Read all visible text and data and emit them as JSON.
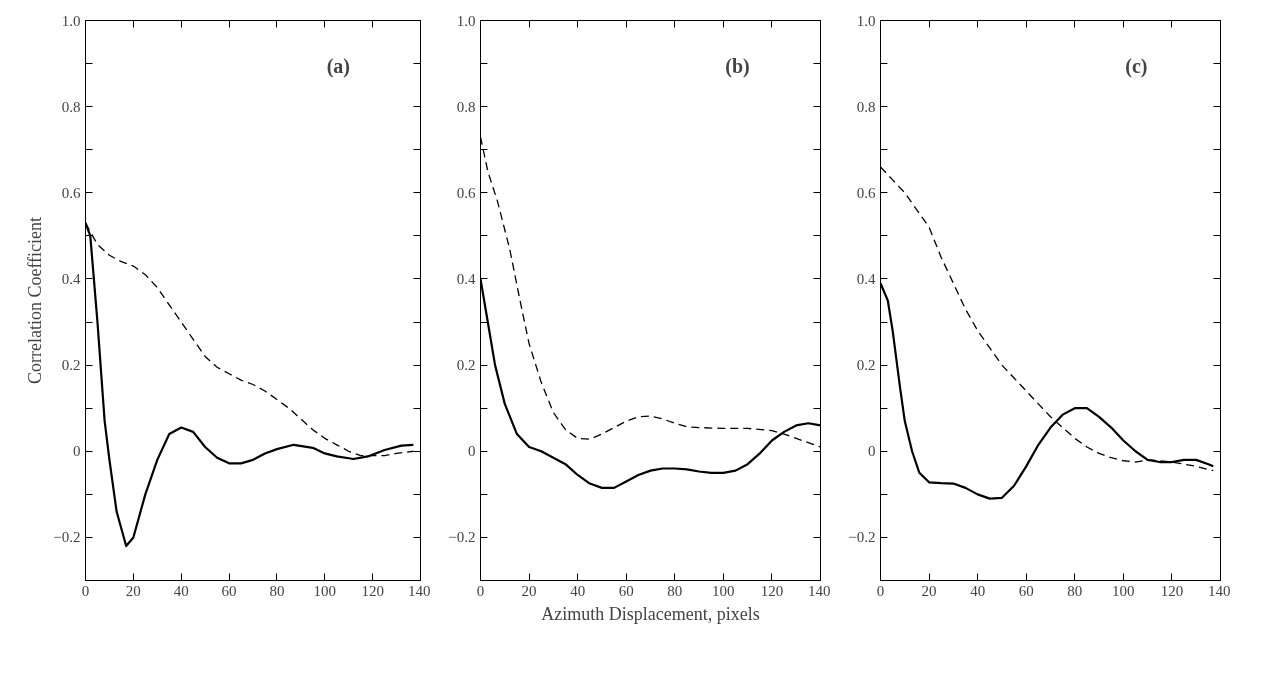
{
  "chart_data": [
    {
      "type": "line",
      "ylabel": "Correlation Coefficient",
      "annotations": [
        "(a)"
      ],
      "xlim": [
        0,
        140
      ],
      "ylim": [
        -0.3,
        1.0
      ],
      "xticks": [
        0,
        20,
        40,
        60,
        80,
        100,
        120,
        140
      ],
      "yticks": [
        {
          "value": -0.3,
          "label": null
        },
        -0.2,
        {
          "value": -0.1,
          "label": null
        },
        0,
        {
          "value": 0.1,
          "label": null
        },
        0.2,
        {
          "value": 0.3,
          "label": null
        },
        0.4,
        {
          "value": 0.5,
          "label": null
        },
        0.6,
        {
          "value": 0.7,
          "label": null
        },
        0.8,
        {
          "value": 0.9,
          "label": null
        },
        {
          "value": 1.0,
          "label": "1.0"
        }
      ],
      "grid": false,
      "series": [
        {
          "color": "#000000",
          "line_style": "solid",
          "x": [
            0,
            2,
            5,
            8,
            10,
            13,
            17,
            20,
            25,
            30,
            35,
            40,
            45,
            50,
            55,
            60,
            65,
            70,
            75,
            80,
            87,
            95,
            100,
            105,
            112,
            118,
            125,
            132,
            137
          ],
          "values": [
            0.53,
            0.5,
            0.3,
            0.07,
            -0.02,
            -0.14,
            -0.22,
            -0.2,
            -0.1,
            -0.02,
            0.04,
            0.055,
            0.045,
            0.01,
            -0.015,
            -0.028,
            -0.028,
            -0.02,
            -0.005,
            0.005,
            0.015,
            0.008,
            -0.005,
            -0.012,
            -0.018,
            -0.012,
            0.003,
            0.013,
            0.015
          ]
        },
        {
          "color": "#000000",
          "line_style": "dashed",
          "x": [
            0,
            5,
            10,
            15,
            20,
            25,
            30,
            35,
            40,
            45,
            50,
            55,
            60,
            65,
            70,
            75,
            80,
            85,
            90,
            95,
            100,
            105,
            110,
            115,
            120,
            125,
            130,
            137
          ],
          "values": [
            0.53,
            0.48,
            0.455,
            0.44,
            0.43,
            0.41,
            0.38,
            0.34,
            0.3,
            0.26,
            0.22,
            0.195,
            0.18,
            0.165,
            0.155,
            0.14,
            0.12,
            0.1,
            0.075,
            0.05,
            0.03,
            0.015,
            0.0,
            -0.01,
            -0.01,
            -0.01,
            -0.005,
            0.0
          ]
        }
      ]
    },
    {
      "type": "line",
      "xlabel": "Azimuth Displacement, pixels",
      "annotations": [
        "(b)"
      ],
      "xlim": [
        0,
        140
      ],
      "ylim": [
        -0.3,
        1.0
      ],
      "xticks": [
        0,
        20,
        40,
        60,
        80,
        100,
        120,
        140
      ],
      "yticks": [
        {
          "value": -0.3,
          "label": null
        },
        -0.2,
        {
          "value": -0.1,
          "label": null
        },
        0,
        {
          "value": 0.1,
          "label": null
        },
        0.2,
        {
          "value": 0.3,
          "label": null
        },
        0.4,
        {
          "value": 0.5,
          "label": null
        },
        0.6,
        {
          "value": 0.7,
          "label": null
        },
        0.8,
        {
          "value": 0.9,
          "label": null
        },
        {
          "value": 1.0,
          "label": "1.0"
        }
      ],
      "grid": false,
      "series": [
        {
          "color": "#000000",
          "line_style": "solid",
          "x": [
            0,
            3,
            6,
            10,
            15,
            20,
            25,
            30,
            35,
            40,
            45,
            50,
            55,
            60,
            65,
            70,
            75,
            80,
            85,
            90,
            95,
            100,
            105,
            110,
            115,
            120,
            125,
            130,
            135,
            140
          ],
          "values": [
            0.4,
            0.3,
            0.2,
            0.11,
            0.04,
            0.01,
            0.0,
            -0.015,
            -0.03,
            -0.055,
            -0.075,
            -0.085,
            -0.085,
            -0.07,
            -0.055,
            -0.045,
            -0.04,
            -0.04,
            -0.042,
            -0.047,
            -0.05,
            -0.05,
            -0.045,
            -0.03,
            -0.005,
            0.025,
            0.045,
            0.06,
            0.065,
            0.06
          ]
        },
        {
          "color": "#000000",
          "line_style": "dashed",
          "x": [
            0,
            3,
            7,
            12,
            17,
            20,
            25,
            30,
            35,
            40,
            45,
            50,
            55,
            60,
            65,
            70,
            75,
            80,
            85,
            90,
            100,
            110,
            120,
            125,
            130,
            135,
            140
          ],
          "values": [
            0.73,
            0.65,
            0.58,
            0.47,
            0.33,
            0.25,
            0.16,
            0.09,
            0.05,
            0.03,
            0.028,
            0.04,
            0.055,
            0.07,
            0.08,
            0.082,
            0.075,
            0.065,
            0.057,
            0.055,
            0.053,
            0.053,
            0.048,
            0.04,
            0.03,
            0.02,
            0.01
          ]
        }
      ]
    },
    {
      "type": "line",
      "annotations": [
        "(c)"
      ],
      "xlim": [
        0,
        140
      ],
      "ylim": [
        -0.3,
        1.0
      ],
      "xticks": [
        0,
        20,
        40,
        60,
        80,
        100,
        120,
        140
      ],
      "yticks": [
        {
          "value": -0.3,
          "label": null
        },
        -0.2,
        {
          "value": -0.1,
          "label": null
        },
        0,
        {
          "value": 0.1,
          "label": null
        },
        0.2,
        {
          "value": 0.3,
          "label": null
        },
        0.4,
        {
          "value": 0.5,
          "label": null
        },
        0.6,
        {
          "value": 0.7,
          "label": null
        },
        0.8,
        {
          "value": 0.9,
          "label": null
        },
        {
          "value": 1.0,
          "label": "1.0"
        }
      ],
      "grid": false,
      "series": [
        {
          "color": "#000000",
          "line_style": "solid",
          "x": [
            0,
            3,
            5,
            8,
            10,
            13,
            16,
            20,
            25,
            30,
            35,
            40,
            45,
            50,
            55,
            60,
            65,
            70,
            75,
            80,
            85,
            90,
            95,
            100,
            105,
            110,
            115,
            120,
            125,
            130,
            135,
            137
          ],
          "values": [
            0.39,
            0.35,
            0.28,
            0.15,
            0.07,
            0.0,
            -0.05,
            -0.072,
            -0.074,
            -0.075,
            -0.085,
            -0.1,
            -0.11,
            -0.108,
            -0.08,
            -0.035,
            0.015,
            0.055,
            0.085,
            0.1,
            0.1,
            0.08,
            0.055,
            0.025,
            0.0,
            -0.02,
            -0.025,
            -0.025,
            -0.02,
            -0.02,
            -0.03,
            -0.035
          ]
        },
        {
          "color": "#000000",
          "line_style": "dashed",
          "x": [
            0,
            5,
            10,
            15,
            20,
            25,
            30,
            35,
            40,
            45,
            50,
            55,
            60,
            65,
            70,
            75,
            80,
            85,
            90,
            95,
            100,
            105,
            110,
            115,
            120,
            125,
            130,
            137
          ],
          "values": [
            0.66,
            0.63,
            0.6,
            0.56,
            0.52,
            0.45,
            0.39,
            0.33,
            0.28,
            0.24,
            0.2,
            0.17,
            0.14,
            0.11,
            0.08,
            0.055,
            0.03,
            0.01,
            -0.005,
            -0.015,
            -0.022,
            -0.025,
            -0.02,
            -0.022,
            -0.025,
            -0.03,
            -0.035,
            -0.045
          ]
        }
      ]
    }
  ]
}
